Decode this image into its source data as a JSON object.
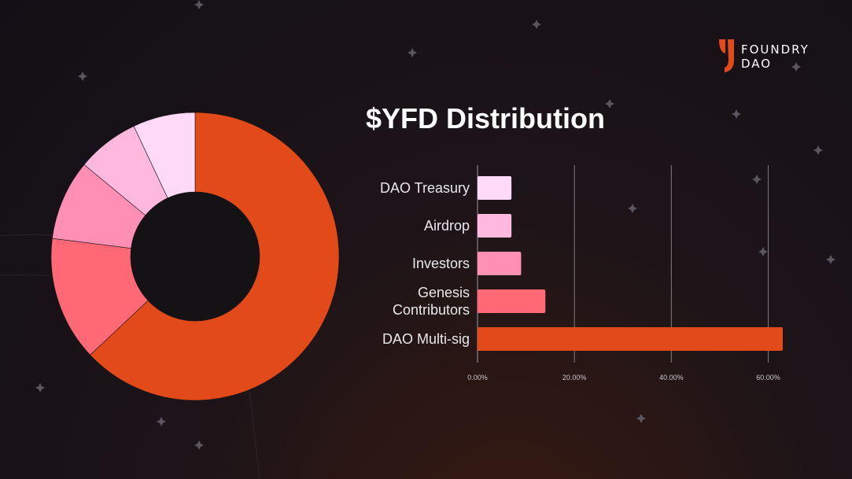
{
  "brand": {
    "line1": "FOUNDRY",
    "line2": "DAO",
    "accent": "#e24a19"
  },
  "chart_data": [
    {
      "type": "bar",
      "orientation": "horizontal",
      "title": "$YFD Distribution",
      "categories": [
        "DAO Treasury",
        "Airdrop",
        "Investors",
        "Genesis Contributors",
        "DAO Multi-sig"
      ],
      "category_lines": [
        [
          "DAO Treasury"
        ],
        [
          "Airdrop"
        ],
        [
          "Investors"
        ],
        [
          "Genesis",
          "Contributors"
        ],
        [
          "DAO Multi-sig"
        ]
      ],
      "values": [
        7,
        7,
        9,
        14,
        63
      ],
      "colors": [
        "#ffd9f8",
        "#ffb8de",
        "#ff8fb4",
        "#ff6875",
        "#e24a19"
      ],
      "xlim": [
        0,
        63
      ],
      "x_ticks": [
        0,
        20,
        40,
        60
      ],
      "x_tick_labels": [
        "0.00%",
        "20.00%",
        "40.00%",
        "60.00%"
      ],
      "grid": true
    },
    {
      "type": "pie",
      "donut": true,
      "categories": [
        "DAO Multi-sig",
        "Genesis Contributors",
        "Investors",
        "Airdrop",
        "DAO Treasury"
      ],
      "values": [
        63,
        14,
        9,
        7,
        7
      ],
      "colors": [
        "#e24a19",
        "#ff6875",
        "#ff8fb4",
        "#ffb8de",
        "#ffd9f8"
      ]
    }
  ]
}
